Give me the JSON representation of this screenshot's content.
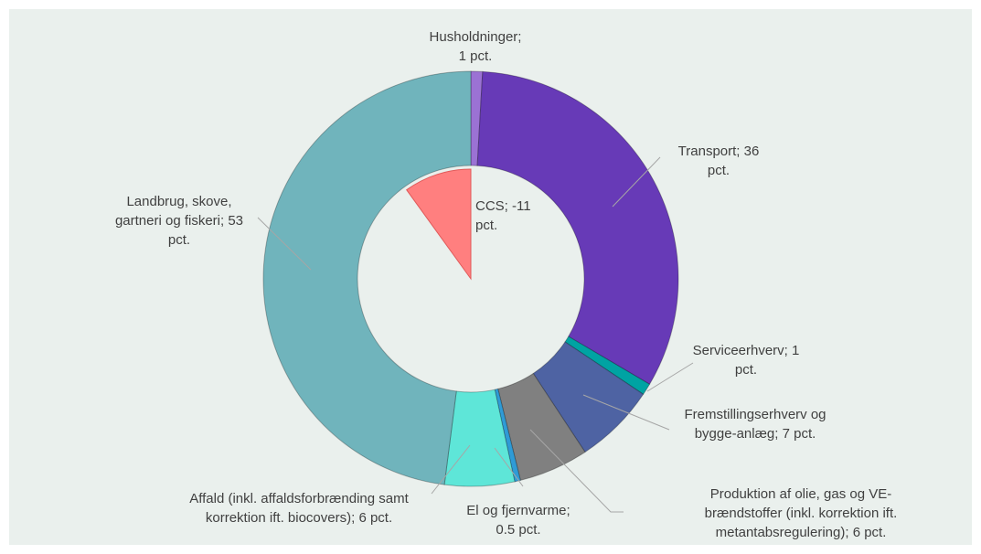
{
  "chart_data": {
    "type": "donut",
    "categories": [
      "Husholdninger;",
      "Transport;",
      "Serviceerhverv;",
      "Fremstillingserhverv og bygge-anlæg;",
      "Produktion af olie, gas og VE-brændstoffer (inkl. korrektion ift. metantabsregulering);",
      "El og fjernvarme;",
      "Affald (inkl. affaldsforbrænding samt korrektion ift. biocovers);",
      "Landbrug, skove, gartneri og fiskeri;"
    ],
    "values": [
      1,
      36,
      1,
      7,
      6,
      0.5,
      6,
      53
    ],
    "value_labels": [
      "1 pct.",
      "36 pct.",
      "1 pct.",
      "7 pct.",
      "6 pct.",
      "0.5 pct.",
      "6 pct.",
      "53 pct."
    ],
    "colors": [
      "#9b72d4",
      "#673ab7",
      "#00a3a3",
      "#4e63a3",
      "#808080",
      "#2f9bd6",
      "#5ee6d8",
      "#70b4bc"
    ],
    "inner": {
      "name": "CCS;",
      "value": -11,
      "value_label": "-11 pct.",
      "color": "#ff7f7f"
    }
  }
}
